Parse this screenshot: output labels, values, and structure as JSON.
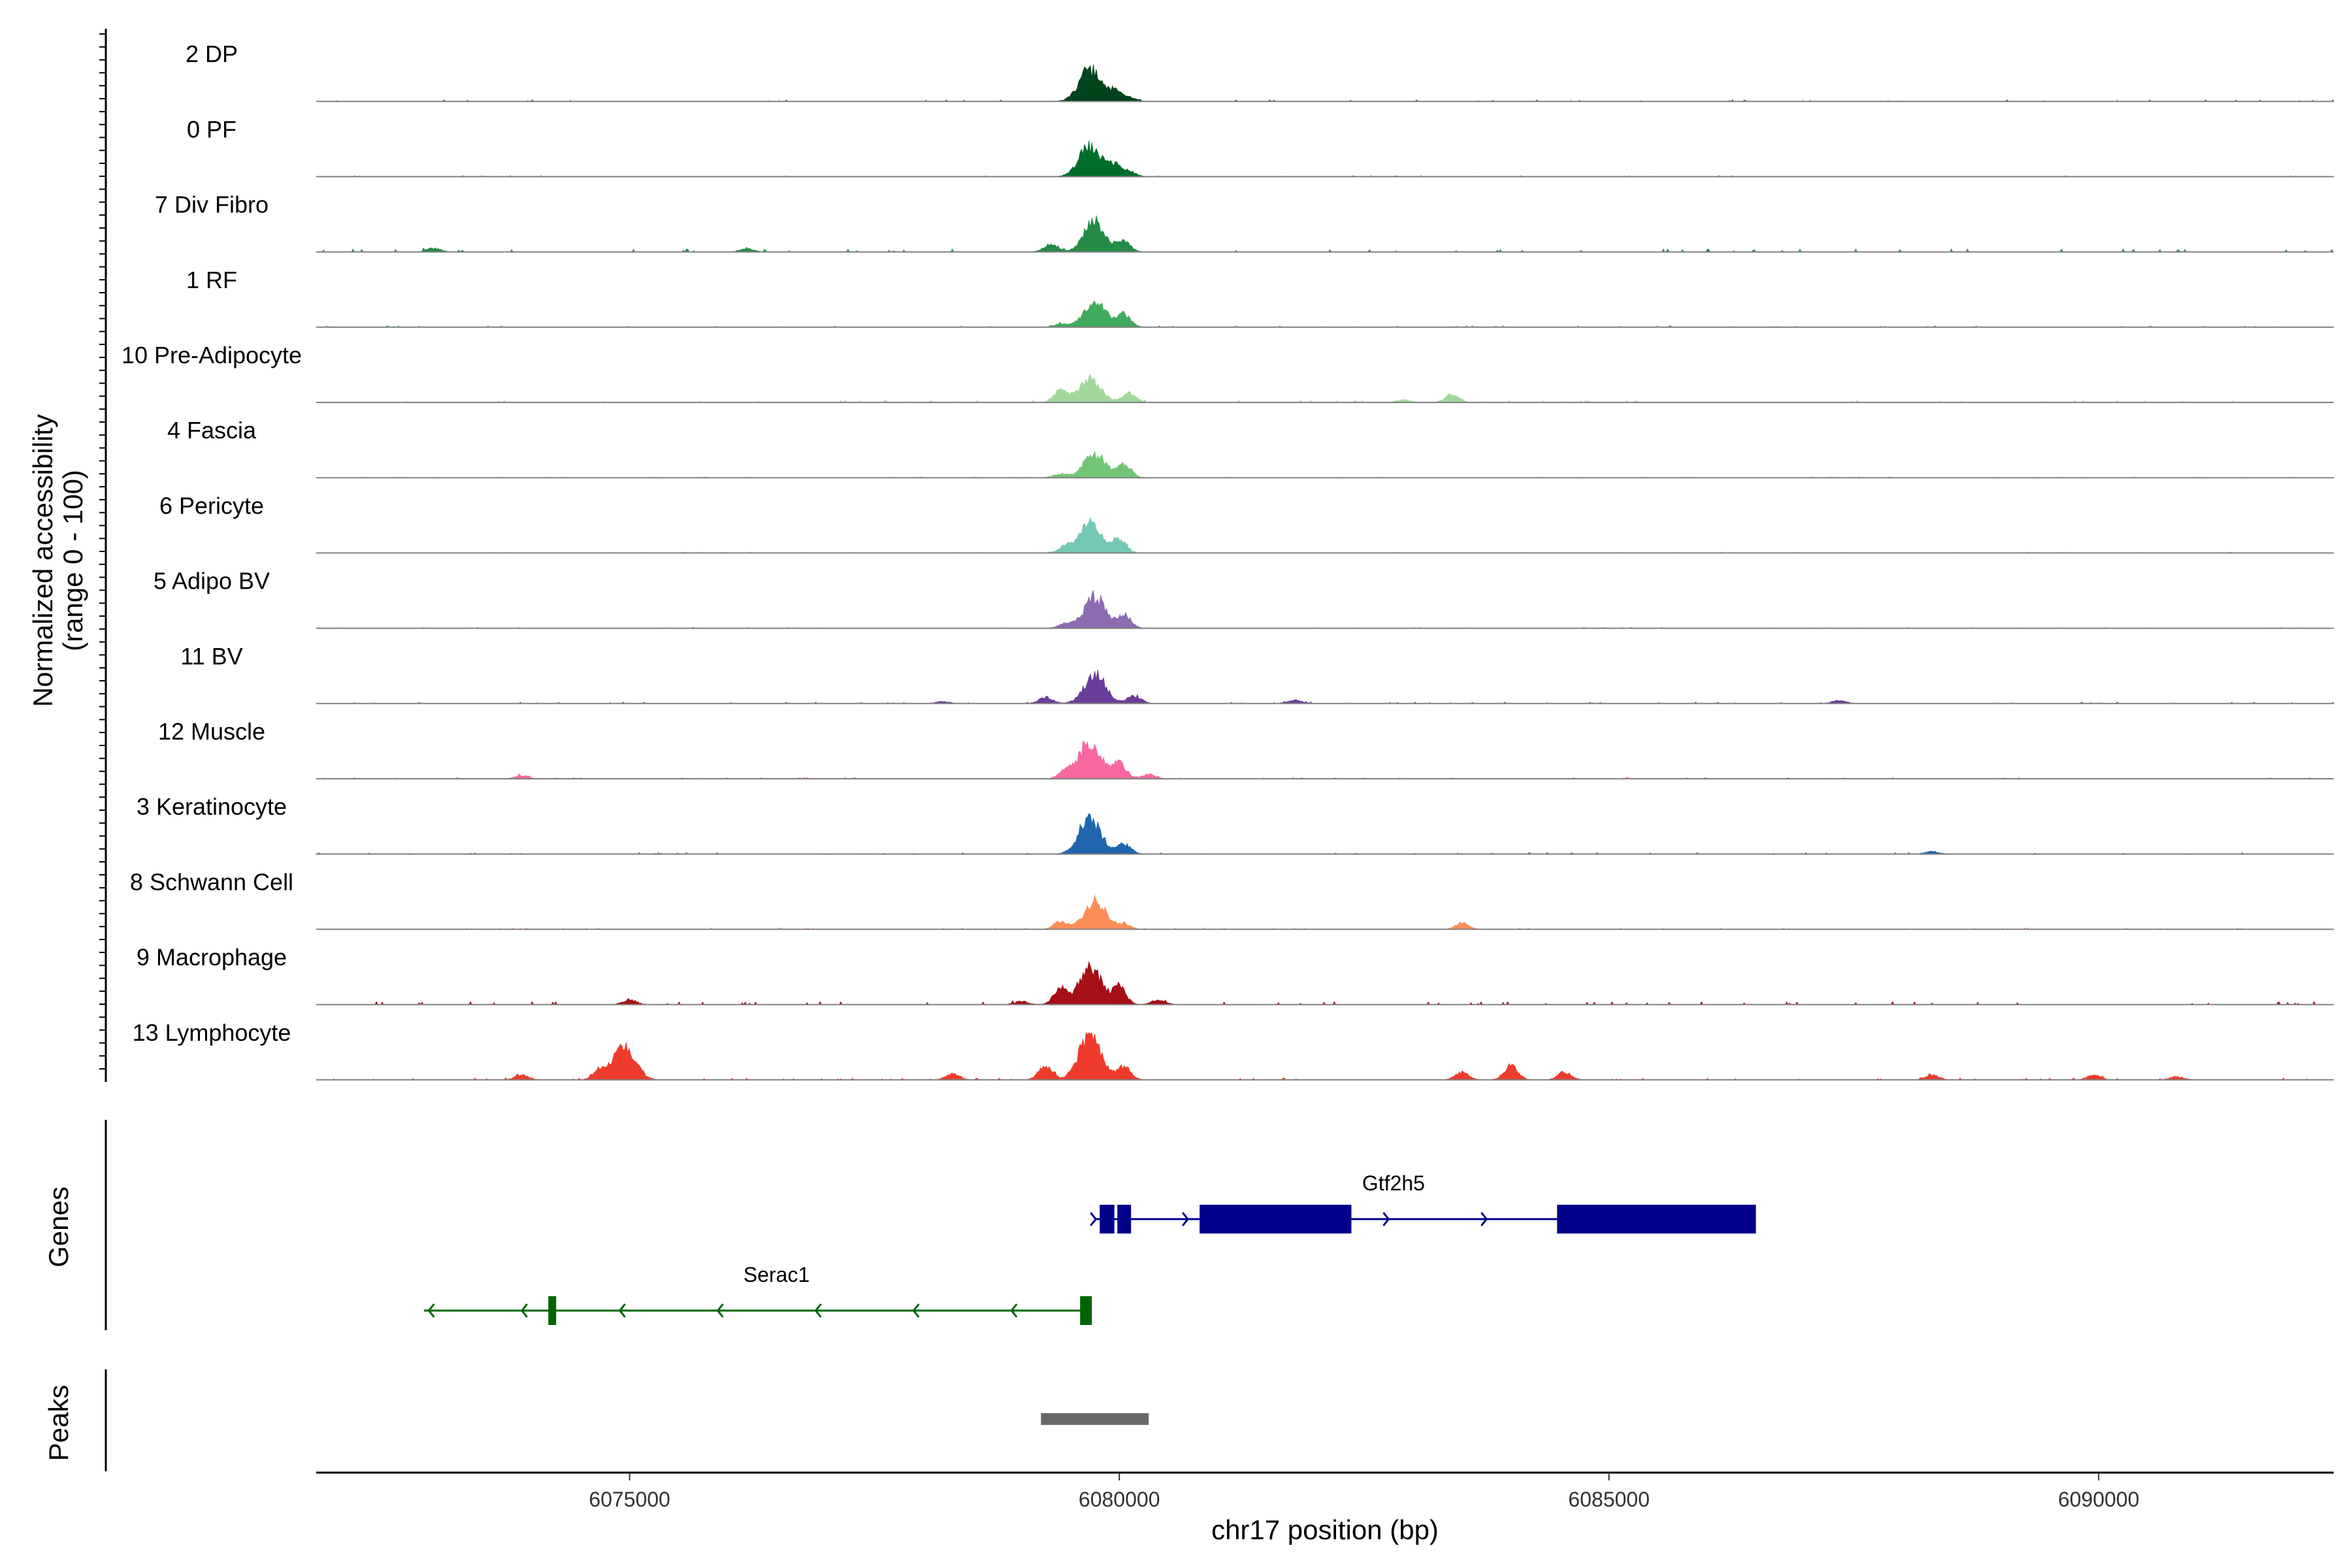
{
  "chart_data": {
    "type": "area",
    "y_axis_title": [
      "Normalized accessibility",
      "(range 0 - 100)"
    ],
    "x_axis_title": "chr17 position (bp)",
    "xlim": [
      6071800,
      6092400
    ],
    "ylim": [
      0,
      100
    ],
    "x_ticks": [
      6075000,
      6080000,
      6085000,
      6090000
    ],
    "x_tick_labels": [
      "6075000",
      "6080000",
      "6085000",
      "6090000"
    ],
    "section_labels": {
      "genes": "Genes",
      "peaks": "Peaks"
    },
    "tracks": [
      {
        "name": "2 DP",
        "color": "#00441b",
        "peaks": [
          [
            6079700,
            100
          ],
          [
            6079950,
            30
          ],
          [
            6080100,
            12
          ]
        ],
        "noise": 3
      },
      {
        "name": "0 PF",
        "color": "#006d2c",
        "peaks": [
          [
            6079700,
            95
          ],
          [
            6079950,
            35
          ],
          [
            6080100,
            15
          ]
        ],
        "noise": 2
      },
      {
        "name": "7 Div Fibro",
        "color": "#238b45",
        "peaks": [
          [
            6079750,
            95
          ],
          [
            6079300,
            25
          ],
          [
            6080050,
            30
          ],
          [
            6073000,
            12
          ],
          [
            6076200,
            10
          ]
        ],
        "noise": 6
      },
      {
        "name": "1 RF",
        "color": "#41ab5d",
        "peaks": [
          [
            6079750,
            85
          ],
          [
            6080050,
            40
          ],
          [
            6079400,
            10
          ]
        ],
        "noise": 3
      },
      {
        "name": "10 Pre-Adipocyte",
        "color": "#a1d99b",
        "peaks": [
          [
            6079700,
            75
          ],
          [
            6079400,
            35
          ],
          [
            6080100,
            30
          ],
          [
            6083400,
            25
          ],
          [
            6082900,
            8
          ]
        ],
        "noise": 4
      },
      {
        "name": "4 Fascia",
        "color": "#74c476",
        "peaks": [
          [
            6079750,
            75
          ],
          [
            6080050,
            45
          ],
          [
            6079400,
            12
          ]
        ],
        "noise": 2
      },
      {
        "name": "6 Pericyte",
        "color": "#74c7b4",
        "peaks": [
          [
            6079700,
            95
          ],
          [
            6080000,
            45
          ],
          [
            6079450,
            20
          ]
        ],
        "noise": 2
      },
      {
        "name": "5 Adipo BV",
        "color": "#8c6bb1",
        "peaks": [
          [
            6079750,
            100
          ],
          [
            6080050,
            40
          ],
          [
            6079450,
            15
          ]
        ],
        "noise": 2
      },
      {
        "name": "11 BV",
        "color": "#6a3d9a",
        "peaks": [
          [
            6079750,
            90
          ],
          [
            6079250,
            20
          ],
          [
            6080150,
            25
          ],
          [
            6087350,
            10
          ],
          [
            6081800,
            10
          ],
          [
            6078200,
            6
          ]
        ],
        "noise": 3
      },
      {
        "name": "12 Muscle",
        "color": "#f768a1",
        "peaks": [
          [
            6079700,
            120
          ],
          [
            6080000,
            50
          ],
          [
            6080300,
            15
          ],
          [
            6079450,
            25
          ],
          [
            6073900,
            10
          ]
        ],
        "noise": 3
      },
      {
        "name": "3 Keratinocyte",
        "color": "#2166ac",
        "peaks": [
          [
            6079700,
            115
          ],
          [
            6080050,
            30
          ],
          [
            6088300,
            8
          ]
        ],
        "noise": 3
      },
      {
        "name": "8 Schwann Cell",
        "color": "#fc8d59",
        "peaks": [
          [
            6079750,
            90
          ],
          [
            6079400,
            25
          ],
          [
            6083500,
            20
          ],
          [
            6080050,
            15
          ]
        ],
        "noise": 3
      },
      {
        "name": "9 Macrophage",
        "color": "#a50f15",
        "peaks": [
          [
            6079700,
            120
          ],
          [
            6079400,
            50
          ],
          [
            6080000,
            55
          ],
          [
            6080400,
            15
          ],
          [
            6075000,
            15
          ],
          [
            6079000,
            10
          ]
        ],
        "noise": 6
      },
      {
        "name": "13 Lymphocyte",
        "color": "#ef3b2c",
        "peaks": [
          [
            6079700,
            150
          ],
          [
            6079250,
            45
          ],
          [
            6080050,
            40
          ],
          [
            6074950,
            110
          ],
          [
            6074700,
            30
          ],
          [
            6084000,
            45
          ],
          [
            6084550,
            25
          ],
          [
            6083500,
            25
          ],
          [
            6078300,
            20
          ],
          [
            6073900,
            15
          ],
          [
            6089950,
            15
          ],
          [
            6088300,
            15
          ],
          [
            6090800,
            10
          ]
        ],
        "noise": 4
      }
    ],
    "genes": [
      {
        "name": "Gtf2h5",
        "strand": "+",
        "color": "#00008b",
        "row": 0,
        "start": 6079750,
        "end": 6086500,
        "label_pos": 6082800,
        "exons": [
          [
            6079800,
            6079950
          ],
          [
            6079980,
            6080120
          ],
          [
            6080820,
            6082370
          ],
          [
            6084470,
            6086500
          ]
        ],
        "chevrons": [
          6079760,
          6080700,
          6082750,
          6083750
        ]
      },
      {
        "name": "Serac1",
        "strand": "-",
        "color": "#006400",
        "row": 1,
        "start": 6072900,
        "end": 6079700,
        "label_pos": 6076500,
        "exons": [
          [
            6074170,
            6074250
          ],
          [
            6079600,
            6079720
          ]
        ],
        "chevrons": [
          6072950,
          6073900,
          6074900,
          6075900,
          6076900,
          6077900,
          6078900
        ]
      }
    ],
    "peak_regions": [
      {
        "start": 6079200,
        "end": 6080300,
        "color": "#696969"
      }
    ]
  }
}
